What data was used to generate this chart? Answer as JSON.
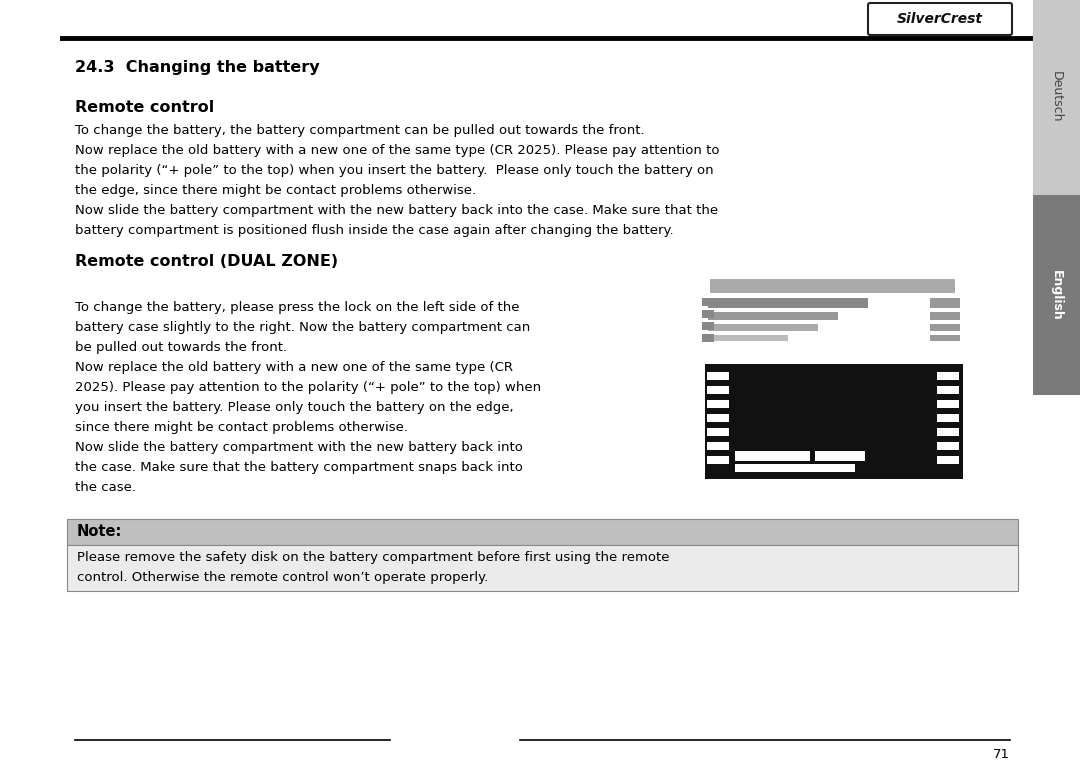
{
  "title_section": "24.3  Changing the battery",
  "subtitle1": "Remote control",
  "para1_lines": [
    "To change the battery, the battery compartment can be pulled out towards the front.",
    "Now replace the old battery with a new one of the same type (CR 2025). Please pay attention to",
    "the polarity (“+ pole” to the top) when you insert the battery.  Please only touch the battery on",
    "the edge, since there might be contact problems otherwise.",
    "Now slide the battery compartment with the new battery back into the case. Make sure that the",
    "battery compartment is positioned flush inside the case again after changing the battery."
  ],
  "subtitle2": "Remote control (DUAL ZONE)",
  "para2_lines": [
    "To change the battery, please press the lock on the left side of the",
    "battery case slightly to the right. Now the battery compartment can",
    "be pulled out towards the front.",
    "Now replace the old battery with a new one of the same type (CR",
    "2025). Please pay attention to the polarity (“+ pole” to the top) when",
    "you insert the battery. Please only touch the battery on the edge,",
    "since there might be contact problems otherwise.",
    "Now slide the battery compartment with the new battery back into",
    "the case. Make sure that the battery compartment snaps back into",
    "the case."
  ],
  "note_title": "Note:",
  "note_lines": [
    "Please remove the safety disk on the battery compartment before first using the remote",
    "control. Otherwise the remote control won’t operate properly."
  ],
  "page_number": "71",
  "tab_deutsch": "Deutsch",
  "tab_english": "English",
  "silvercrest_text": "SilverCrest",
  "bg_color": "#ffffff",
  "tab_deutsch_bg": "#c8c8c8",
  "tab_english_bg": "#7a7a7a",
  "note_header_bg": "#c0c0c0",
  "note_body_bg": "#ebebeb",
  "line_color": "#000000",
  "top_line_color": "#000000",
  "text_color": "#000000"
}
